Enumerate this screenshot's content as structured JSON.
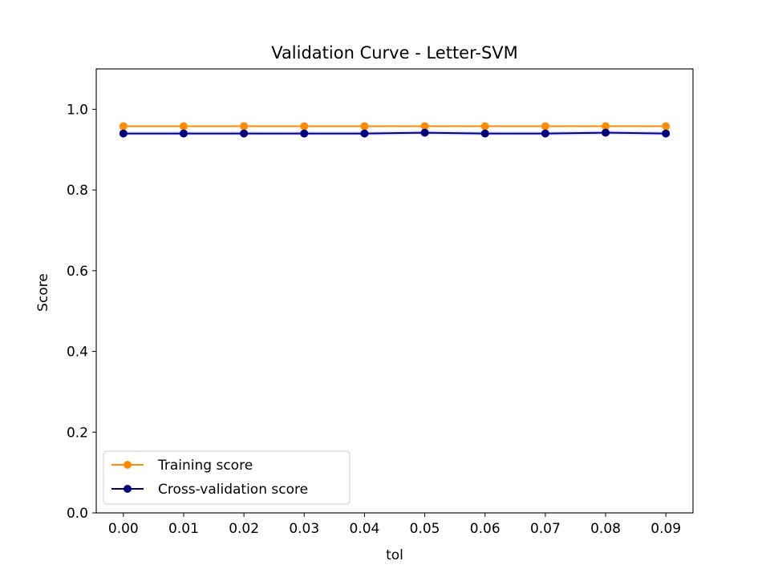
{
  "chart_data": {
    "type": "line",
    "title": "Validation Curve - Letter-SVM",
    "xlabel": "tol",
    "ylabel": "Score",
    "x": [
      0.0,
      0.01,
      0.02,
      0.03,
      0.04,
      0.05,
      0.06,
      0.07,
      0.08,
      0.09
    ],
    "x_tick_labels": [
      "0.00",
      "0.01",
      "0.02",
      "0.03",
      "0.04",
      "0.05",
      "0.06",
      "0.07",
      "0.08",
      "0.09"
    ],
    "y_ticks": [
      0.0,
      0.2,
      0.4,
      0.6,
      0.8,
      1.0
    ],
    "y_tick_labels": [
      "0.0",
      "0.2",
      "0.4",
      "0.6",
      "0.8",
      "1.0"
    ],
    "xlim": [
      -0.0045,
      0.0945
    ],
    "ylim": [
      0.0,
      1.1
    ],
    "grid": false,
    "legend_position": "lower-left",
    "series": [
      {
        "name": "Training score",
        "color": "#ff8c00",
        "band_color": "#ff8c00",
        "values": [
          0.958,
          0.958,
          0.958,
          0.958,
          0.958,
          0.958,
          0.958,
          0.958,
          0.958,
          0.958
        ],
        "std": [
          0.001,
          0.001,
          0.001,
          0.001,
          0.001,
          0.001,
          0.001,
          0.001,
          0.001,
          0.001
        ]
      },
      {
        "name": "Cross-validation score",
        "color": "#000080",
        "band_color": "#5a5aff",
        "values": [
          0.94,
          0.94,
          0.94,
          0.94,
          0.94,
          0.942,
          0.94,
          0.94,
          0.942,
          0.94
        ],
        "std": [
          0.005,
          0.005,
          0.005,
          0.005,
          0.005,
          0.005,
          0.005,
          0.005,
          0.005,
          0.005
        ]
      }
    ]
  }
}
